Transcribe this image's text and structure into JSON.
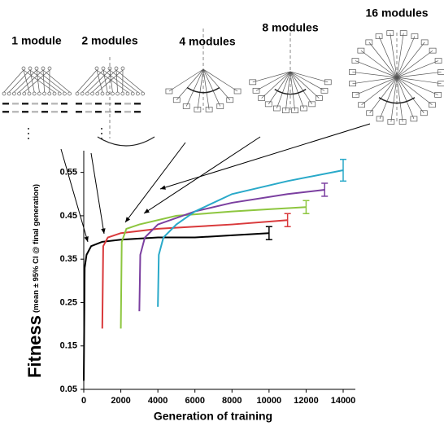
{
  "chart_data": {
    "type": "line",
    "annotations": [
      "1 module",
      "2 modules",
      "4 modules",
      "8 modules",
      "16 modules"
    ],
    "y_label": "Fitness",
    "y_label_note": "(mean ± 95% CI @ final generation)",
    "x_label": "Generation of training",
    "xlim": [
      0,
      14000
    ],
    "xticks": [
      0,
      2000,
      4000,
      6000,
      8000,
      10000,
      12000,
      14000
    ],
    "ylim": [
      0.05,
      0.6
    ],
    "yticks": [
      0.05,
      0.15,
      0.25,
      0.35,
      0.45,
      0.55
    ],
    "series": [
      {
        "name": "1 module",
        "color": "#000000",
        "error": 0.015,
        "x": [
          0,
          50,
          150,
          400,
          1000,
          2000,
          4000,
          6000,
          8000,
          10000
        ],
        "values": [
          0.07,
          0.33,
          0.36,
          0.38,
          0.39,
          0.395,
          0.4,
          0.4,
          0.405,
          0.41
        ]
      },
      {
        "name": "2 modules",
        "color": "#d9393b",
        "error": 0.015,
        "x": [
          1000,
          1050,
          1300,
          2000,
          4000,
          6000,
          8000,
          11000
        ],
        "values": [
          0.19,
          0.38,
          0.4,
          0.41,
          0.42,
          0.425,
          0.43,
          0.44
        ]
      },
      {
        "name": "4 modules",
        "color": "#8dc63f",
        "error": 0.015,
        "x": [
          2000,
          2050,
          2300,
          3000,
          5000,
          8000,
          10000,
          12000
        ],
        "values": [
          0.19,
          0.39,
          0.42,
          0.43,
          0.45,
          0.46,
          0.465,
          0.47
        ]
      },
      {
        "name": "8 modules",
        "color": "#7b3fa0",
        "error": 0.015,
        "x": [
          3000,
          3050,
          3300,
          4000,
          6000,
          8000,
          11000,
          13000
        ],
        "values": [
          0.23,
          0.36,
          0.4,
          0.43,
          0.46,
          0.48,
          0.5,
          0.51
        ]
      },
      {
        "name": "16 modules",
        "color": "#29a9c9",
        "error": 0.025,
        "x": [
          4000,
          4050,
          4300,
          5000,
          6000,
          8000,
          11000,
          14000
        ],
        "values": [
          0.24,
          0.36,
          0.4,
          0.43,
          0.46,
          0.5,
          0.53,
          0.555
        ]
      }
    ]
  }
}
